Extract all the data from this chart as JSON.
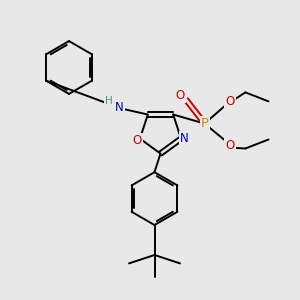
{
  "bg": "#e8e8e8",
  "C": "#000000",
  "N": "#0000cc",
  "O": "#cc0000",
  "P": "#cc8800",
  "H": "#4a9090",
  "lw": 1.4,
  "fs": 8.5
}
